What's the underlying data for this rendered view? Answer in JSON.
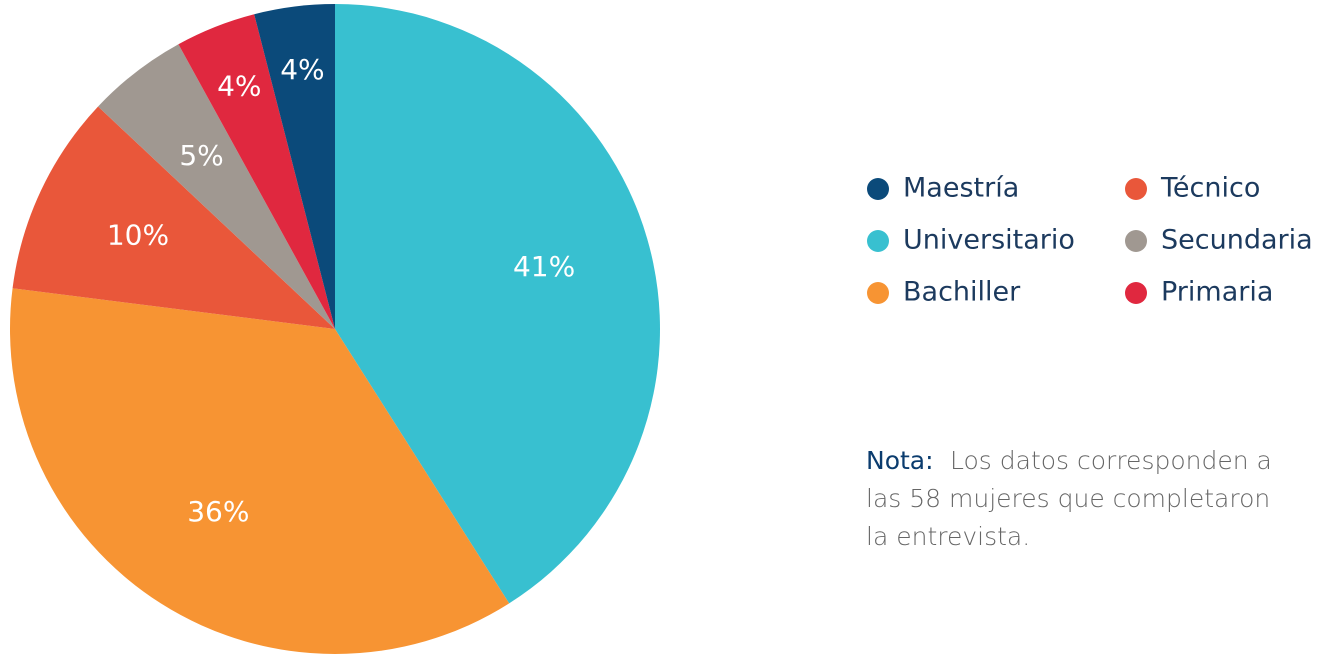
{
  "chart_data": {
    "type": "pie",
    "categories": [
      "Universitario",
      "Bachiller",
      "Técnico",
      "Secundaria",
      "Primaria",
      "Maestría"
    ],
    "values": [
      41,
      36,
      10,
      5,
      4,
      4
    ],
    "value_labels": [
      "41%",
      "36%",
      "10%",
      "5%",
      "4%",
      "4%"
    ],
    "colors": [
      "#38c0d0",
      "#f79433",
      "#e9573a",
      "#a09891",
      "#e0283f",
      "#0b4a7a"
    ],
    "legend": "right",
    "note": {
      "label": "Nota:",
      "lines": [
        "Los datos corresponden a",
        "las 58 mujeres que completaron",
        "la entrevista."
      ]
    }
  }
}
